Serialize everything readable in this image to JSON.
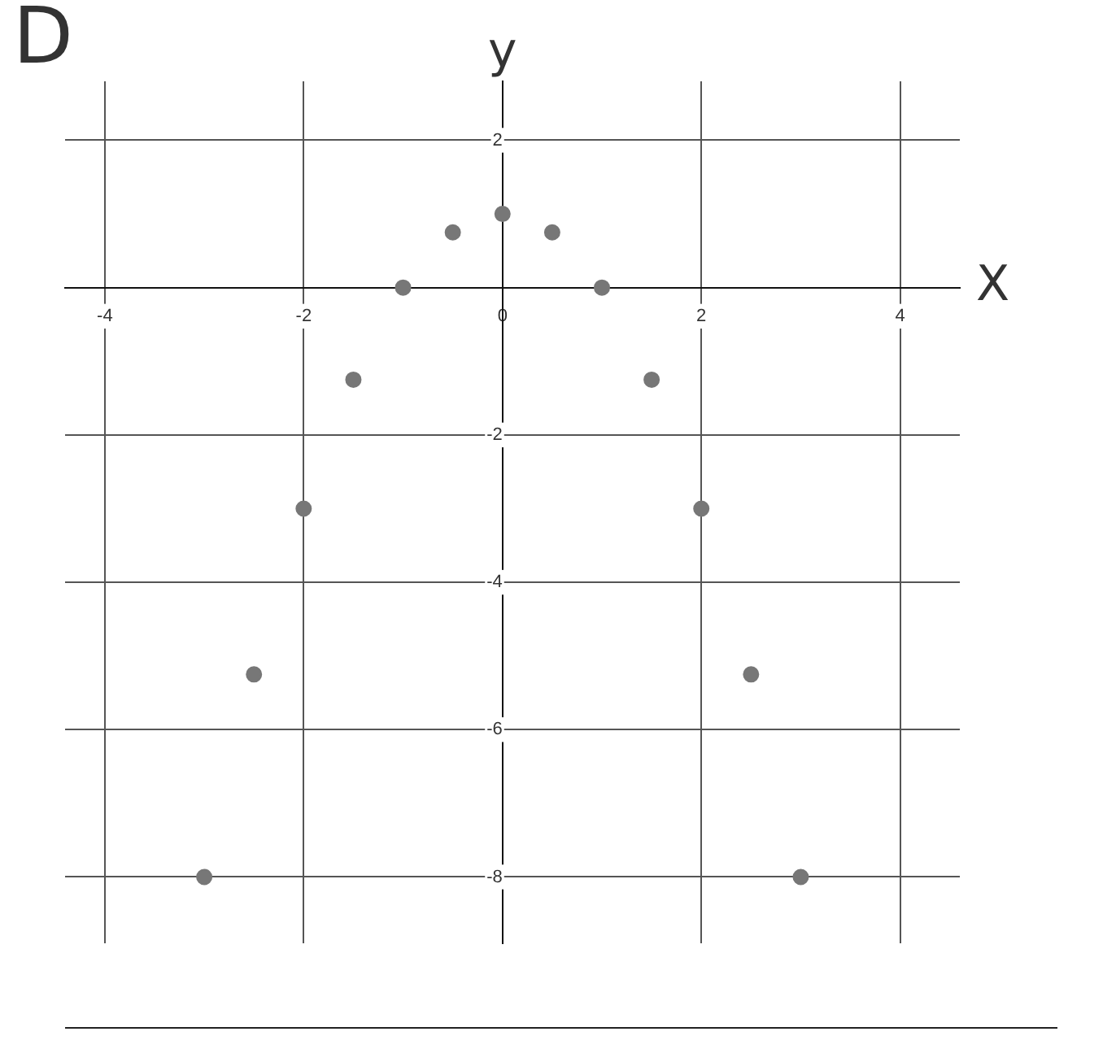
{
  "chart_data": {
    "type": "scatter",
    "title": "D",
    "xlabel": "X",
    "ylabel": "y",
    "x": [
      -3,
      -2.5,
      -2,
      -1.5,
      -1,
      -0.5,
      0,
      0.5,
      1,
      1.5,
      2,
      2.5,
      3
    ],
    "values": [
      -8,
      -5.25,
      -3,
      -1.25,
      0,
      0.75,
      1,
      0.75,
      0,
      -1.25,
      -3,
      -5.25,
      -8
    ],
    "color": "#777777",
    "marker": "circle",
    "xlim": [
      -4.4,
      4.6
    ],
    "ylim": [
      -8.9,
      2.8
    ],
    "xticks": [
      -4,
      -2,
      0,
      2,
      4
    ],
    "yticks": [
      -8,
      -6,
      -4,
      -2,
      2
    ],
    "grid": true,
    "legend": false
  }
}
